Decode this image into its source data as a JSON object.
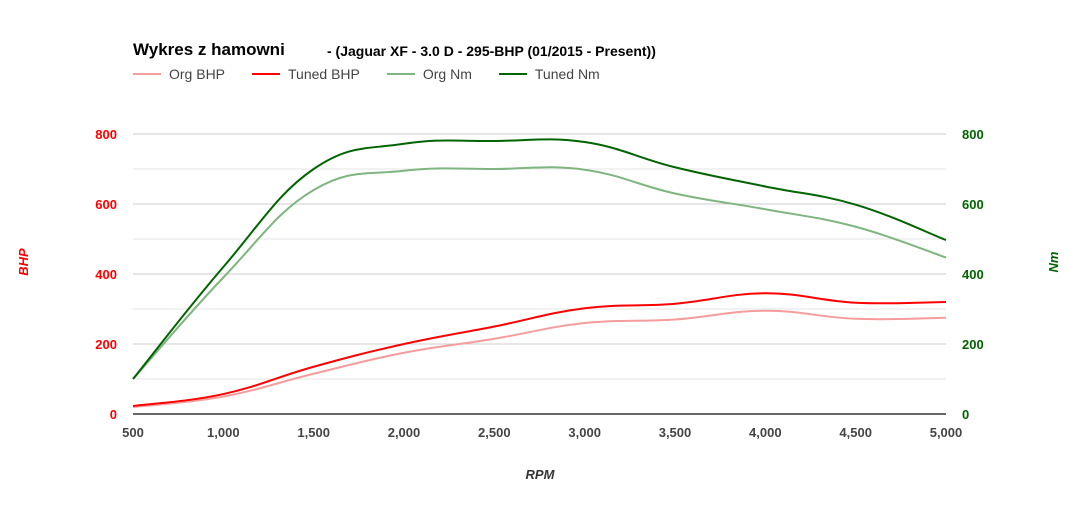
{
  "title": "Wykres z hamowni",
  "subtitle": "- (Jaguar XF - 3.0 D - 295-BHP (01/2015 - Present))",
  "legend": [
    {
      "label": "Org BHP",
      "color": "#f59c9c"
    },
    {
      "label": "Tuned BHP",
      "color": "#ff0000"
    },
    {
      "label": "Org Nm",
      "color": "#7fb57f"
    },
    {
      "label": "Tuned Nm",
      "color": "#006400"
    }
  ],
  "axes": {
    "x_title": "RPM",
    "left_title": "BHP",
    "right_title": "Nm",
    "left_color": "#ff0000",
    "right_color": "#006400"
  },
  "chart_data": {
    "type": "line",
    "title": "Wykres z hamowni",
    "subtitle": "- (Jaguar XF - 3.0 D - 295-BHP (01/2015 - Present))",
    "xlabel": "RPM",
    "ylabel": "BHP",
    "y2label": "Nm",
    "x": [
      500,
      1000,
      1500,
      2000,
      2500,
      3000,
      3500,
      4000,
      4500,
      5000
    ],
    "x_ticks": [
      "500",
      "1,000",
      "1,500",
      "2,000",
      "2,500",
      "3,000",
      "3,500",
      "4,000",
      "4,500",
      "5,000"
    ],
    "xlim": [
      500,
      5000
    ],
    "ylim": [
      0,
      800
    ],
    "y2lim": [
      0,
      800
    ],
    "y_ticks": [
      "0",
      "200",
      "400",
      "600",
      "800"
    ],
    "y2_ticks": [
      "0",
      "200",
      "400",
      "600",
      "800"
    ],
    "grid": true,
    "legend_position": "top",
    "series": [
      {
        "name": "Org BHP",
        "axis": "left",
        "color": "#f59c9c",
        "values": [
          20,
          50,
          115,
          175,
          215,
          260,
          270,
          295,
          272,
          275
        ]
      },
      {
        "name": "Tuned BHP",
        "axis": "left",
        "color": "#ff0000",
        "values": [
          23,
          57,
          135,
          200,
          250,
          302,
          315,
          345,
          318,
          320
        ]
      },
      {
        "name": "Org Nm",
        "axis": "right",
        "color": "#7fb57f",
        "values": [
          100,
          390,
          640,
          695,
          700,
          698,
          630,
          585,
          535,
          447
        ]
      },
      {
        "name": "Tuned Nm",
        "axis": "right",
        "color": "#006400",
        "values": [
          100,
          420,
          700,
          772,
          780,
          777,
          705,
          650,
          598,
          497
        ]
      }
    ]
  }
}
